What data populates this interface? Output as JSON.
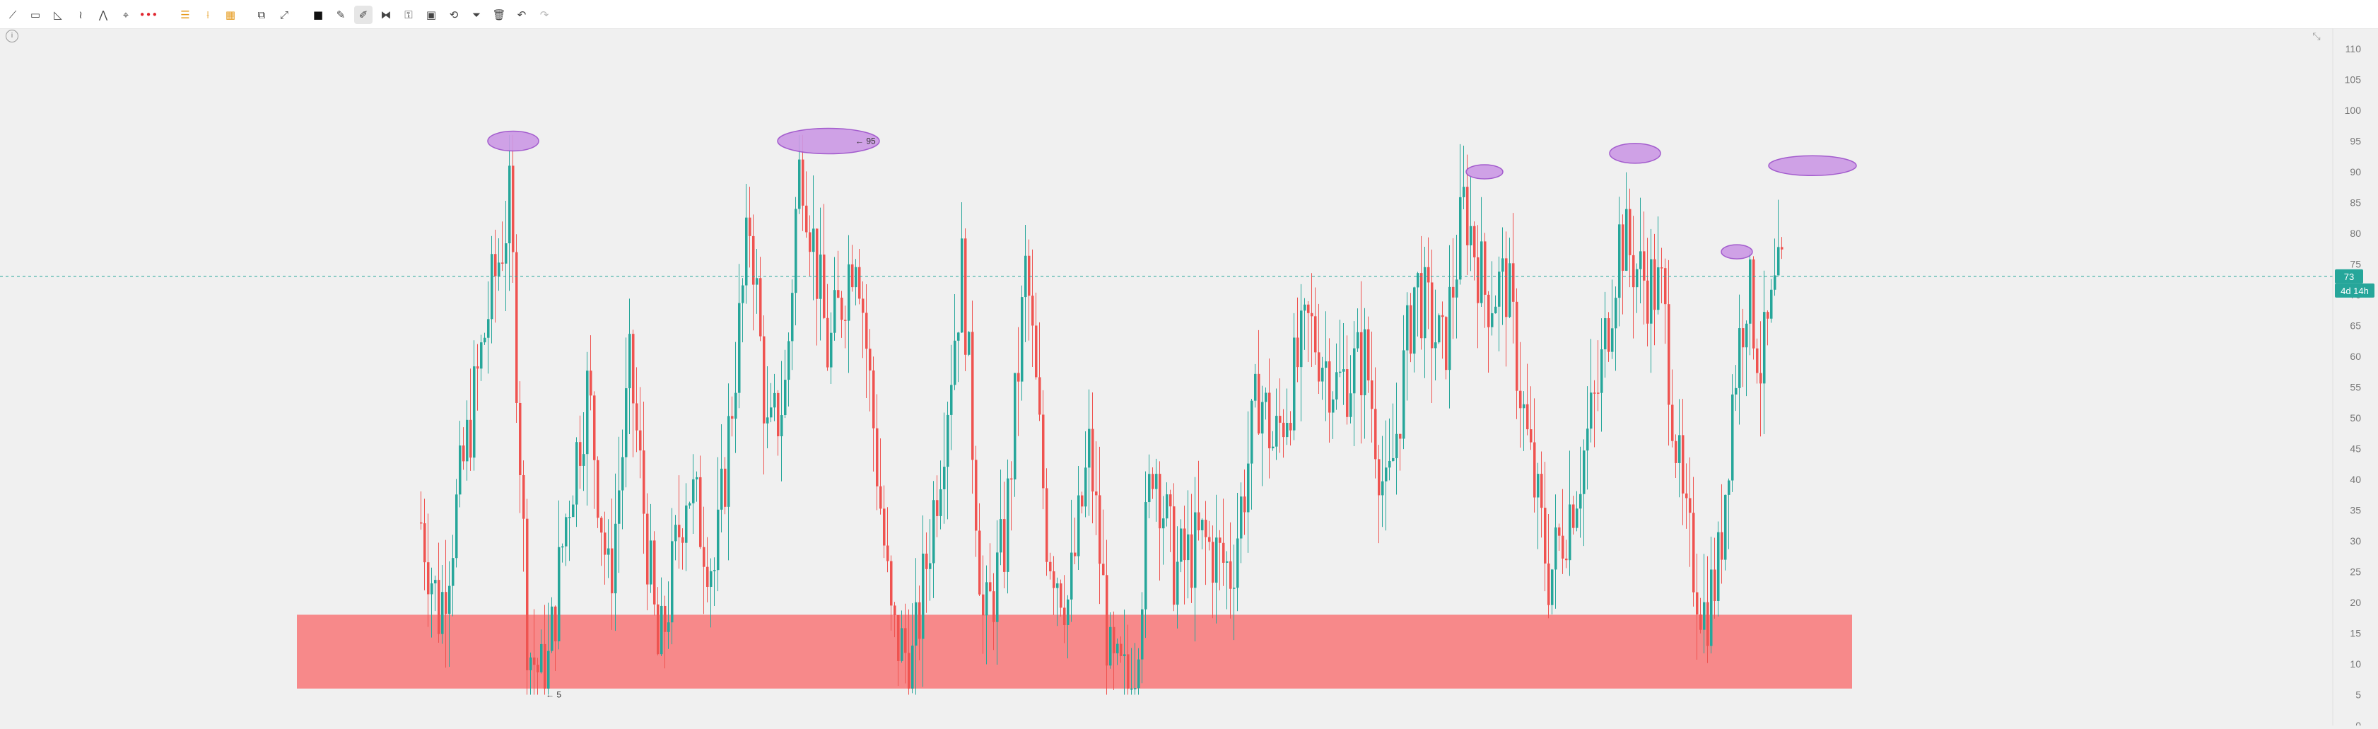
{
  "toolbar": {
    "items": [
      {
        "name": "trendline-tool-icon",
        "glyph": "⟋"
      },
      {
        "name": "rectangle-tool-icon",
        "glyph": "▭"
      },
      {
        "name": "angle-tool-icon",
        "glyph": "◺"
      },
      {
        "name": "zigzag-tool-icon",
        "glyph": "≀"
      },
      {
        "name": "pattern-tool-icon",
        "glyph": "⋀"
      },
      {
        "name": "pointer-tool-icon",
        "glyph": "⌖"
      },
      {
        "name": "dots-tool-icon",
        "glyph": "•••"
      },
      {
        "name": "fib-retracement-icon",
        "glyph": "☰"
      },
      {
        "name": "fib-fan-icon",
        "glyph": "⟊"
      },
      {
        "name": "fib-grid-icon",
        "glyph": "▦"
      },
      {
        "name": "brush-tool-icon",
        "glyph": "⧉"
      },
      {
        "name": "measure-tool-icon",
        "glyph": "⤢"
      },
      {
        "name": "magnet-icon",
        "glyph": "■"
      },
      {
        "name": "pencil-icon",
        "glyph": "✎"
      },
      {
        "name": "highlighter-icon",
        "glyph": "✐"
      },
      {
        "name": "ruler-icon",
        "glyph": "⧓"
      },
      {
        "name": "lock-icon",
        "glyph": "⚿"
      },
      {
        "name": "image-icon",
        "glyph": "▣"
      },
      {
        "name": "hide-drawings-icon",
        "glyph": "⟲"
      },
      {
        "name": "filter-icon",
        "glyph": "⏷"
      },
      {
        "name": "trash-icon",
        "glyph": "🗑"
      },
      {
        "name": "undo-icon",
        "glyph": "↶"
      },
      {
        "name": "redo-icon",
        "glyph": "↷"
      }
    ]
  },
  "colors": {
    "up": "#26a69a",
    "down": "#ef5350",
    "zone_fill": "#f7898a",
    "ellipse_fill": "#cc99e6",
    "ellipse_stroke": "#9b4dca",
    "price_line": "#26a69a",
    "grid_text": "#777777"
  },
  "chart_data": {
    "type": "candlestick",
    "y_axis": {
      "min": 0,
      "max": 110,
      "step": 5,
      "position": "right"
    },
    "current_price": {
      "value": "73",
      "countdown": "4d 14h"
    },
    "annotations": [
      {
        "text": "← 5",
        "price": 5
      },
      {
        "text": "← 95",
        "price": 95
      }
    ],
    "support_zone": {
      "price_low": 6,
      "price_high": 18
    },
    "peak_markers": [
      {
        "price": 95
      },
      {
        "price": 95
      },
      {
        "price": 90
      },
      {
        "price": 93
      },
      {
        "price": 77
      },
      {
        "price": 91
      }
    ]
  }
}
